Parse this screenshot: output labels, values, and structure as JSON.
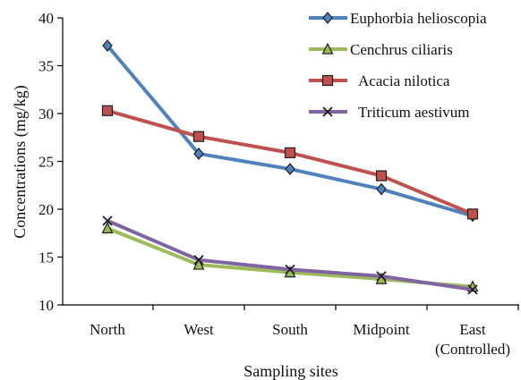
{
  "chart_data": {
    "type": "line",
    "title": "",
    "xlabel": "Sampling sites",
    "ylabel": "Concentrations (mg/kg)",
    "ylim": [
      10,
      40
    ],
    "yticks": [
      10,
      15,
      20,
      25,
      30,
      35,
      40
    ],
    "ytick_labels": [
      "10",
      "15",
      "20",
      "25",
      "30",
      "35",
      "40"
    ],
    "grid": false,
    "legend_placement": "top-right",
    "categories": [
      "North",
      "West",
      "South",
      "Midpoint",
      "East"
    ],
    "category_labels": [
      [
        "North"
      ],
      [
        "West"
      ],
      [
        "South"
      ],
      [
        "Midpoint"
      ],
      [
        "East",
        "(Controlled)"
      ]
    ],
    "series": [
      {
        "name": "Euphorbia helioscopia",
        "color": "#4f81bd",
        "marker": "diamond",
        "values": [
          37.1,
          25.8,
          24.2,
          22.1,
          19.3
        ]
      },
      {
        "name": "Cenchrus ciliaris",
        "color": "#9bbb59",
        "marker": "triangle",
        "values": [
          18.0,
          14.2,
          13.4,
          12.7,
          11.9
        ]
      },
      {
        "name": "Acacia nilotica",
        "color": "#c0504d",
        "marker": "square",
        "values": [
          30.3,
          27.6,
          25.9,
          23.5,
          19.5
        ]
      },
      {
        "name": "Triticum aestivum",
        "color": "#8064a2",
        "marker": "x",
        "values": [
          18.8,
          14.7,
          13.7,
          13.0,
          11.6
        ]
      }
    ]
  }
}
